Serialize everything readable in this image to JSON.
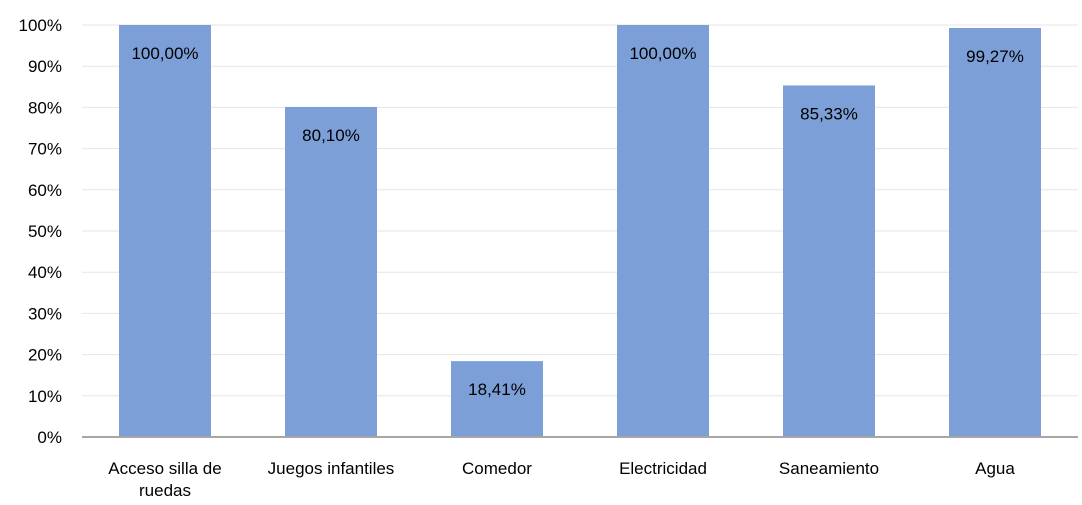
{
  "chart_data": {
    "type": "bar",
    "categories": [
      [
        "Acceso silla de",
        "ruedas"
      ],
      [
        "Juegos infantiles"
      ],
      [
        "Comedor"
      ],
      [
        "Electricidad"
      ],
      [
        "Saneamiento"
      ],
      [
        "Agua"
      ]
    ],
    "values": [
      100.0,
      80.1,
      18.41,
      100.0,
      85.33,
      99.27
    ],
    "data_labels": [
      "100,00%",
      "80,10%",
      "18,41%",
      "100,00%",
      "85,33%",
      "99,27%"
    ],
    "y_ticks": [
      "0%",
      "10%",
      "20%",
      "30%",
      "40%",
      "50%",
      "60%",
      "70%",
      "80%",
      "90%",
      "100%"
    ],
    "ylim": [
      0,
      100
    ],
    "grid": true,
    "colors": {
      "bar": "#7b9fd6",
      "grid": "#e6e6e6",
      "axis": "#a6a6a6"
    }
  }
}
